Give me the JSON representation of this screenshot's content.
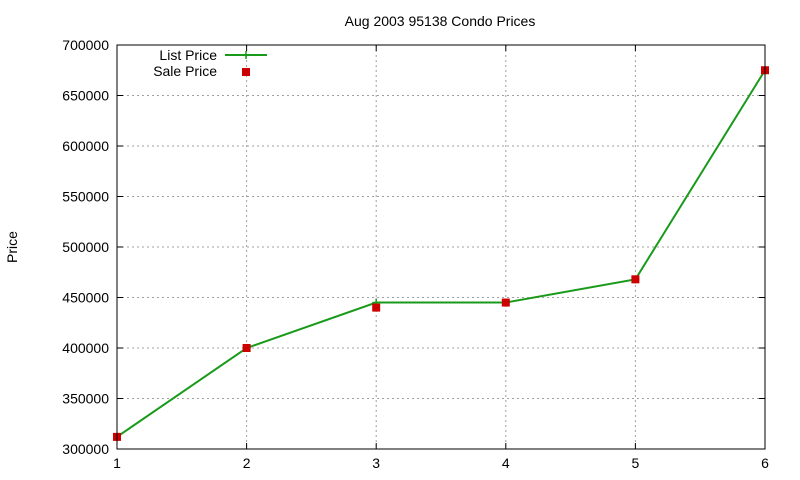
{
  "chart_data": {
    "type": "line",
    "title": "Aug 2003 95138 Condo Prices",
    "xlabel": "",
    "ylabel": "Price",
    "xlim": [
      1,
      6
    ],
    "ylim": [
      300000,
      700000
    ],
    "x_ticks": [
      "1",
      "2",
      "3",
      "4",
      "5",
      "6"
    ],
    "y_ticks": [
      "300000",
      "350000",
      "400000",
      "450000",
      "500000",
      "550000",
      "600000",
      "650000",
      "700000"
    ],
    "grid": true,
    "legend_position": "top-left",
    "x": [
      1,
      2,
      3,
      4,
      5,
      6
    ],
    "series": [
      {
        "name": "List Price",
        "values": [
          312000,
          400000,
          445000,
          445000,
          468000,
          675000
        ],
        "color": "#1a9a1a",
        "style": "line"
      },
      {
        "name": "Sale Price",
        "values": [
          312000,
          400000,
          440000,
          445000,
          468000,
          675000
        ],
        "color": "#cc0000",
        "style": "markers"
      }
    ]
  }
}
